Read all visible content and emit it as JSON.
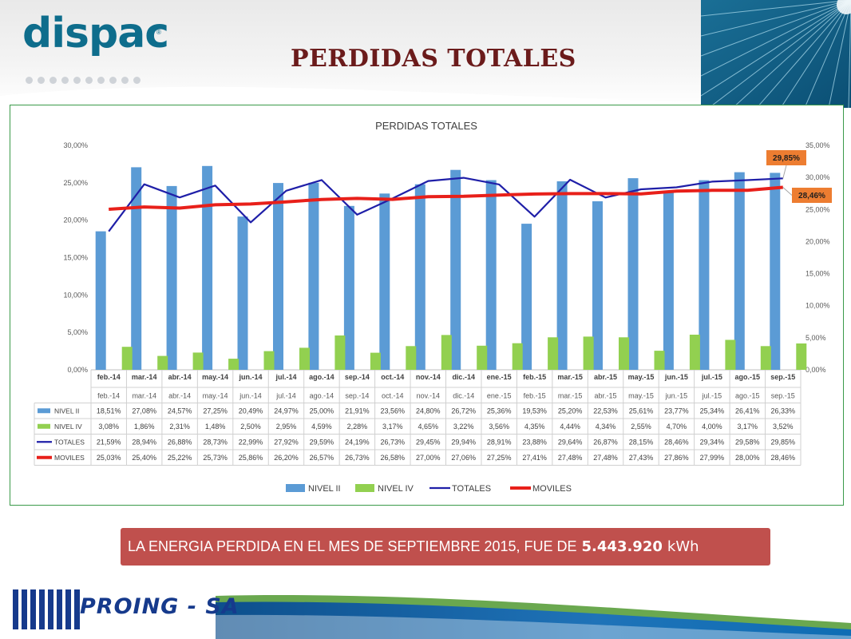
{
  "brand": {
    "logo_text": "dispac",
    "logo_mark": "®",
    "footer_logo": "PROING - SA"
  },
  "page": {
    "title": "PERDIDAS TOTALES"
  },
  "callout": {
    "text": "LA ENERGIA PERDIDA EN EL MES DE SEPTIEMBRE 2015, FUE DE",
    "value": "5.443.920",
    "unit": "kWh",
    "color": "#c0504d"
  },
  "chart_data": {
    "type": "bar",
    "title": "PERDIDAS TOTALES",
    "categories": [
      "feb.-14",
      "mar.-14",
      "abr.-14",
      "may.-14",
      "jun.-14",
      "jul.-14",
      "ago.-14",
      "sep.-14",
      "oct.-14",
      "nov.-14",
      "dic.-14",
      "ene.-15",
      "feb.-15",
      "mar.-15",
      "abr.-15",
      "may.-15",
      "jun.-15",
      "jul.-15",
      "ago.-15",
      "sep.-15"
    ],
    "y_left": {
      "min": 0,
      "max": 30,
      "step": 5,
      "ticks": [
        "0,00%",
        "5,00%",
        "10,00%",
        "15,00%",
        "20,00%",
        "25,00%",
        "30,00%"
      ]
    },
    "y_right": {
      "min": 0,
      "max": 35,
      "step": 5,
      "ticks": [
        "0,00%",
        "5,00%",
        "10,00%",
        "15,00%",
        "20,00%",
        "25,00%",
        "30,00%",
        "35,00%"
      ]
    },
    "series": [
      {
        "name": "NIVEL II",
        "type": "bar",
        "axis": "left",
        "color": "#5b9bd5",
        "values": [
          18.51,
          27.08,
          24.57,
          27.25,
          20.49,
          24.97,
          25.0,
          21.91,
          23.56,
          24.8,
          26.72,
          25.36,
          19.53,
          25.2,
          22.53,
          25.61,
          23.77,
          25.34,
          26.41,
          26.33
        ],
        "labels": [
          "18,51%",
          "27,08%",
          "24,57%",
          "27,25%",
          "20,49%",
          "24,97%",
          "25,00%",
          "21,91%",
          "23,56%",
          "24,80%",
          "26,72%",
          "25,36%",
          "19,53%",
          "25,20%",
          "22,53%",
          "25,61%",
          "23,77%",
          "25,34%",
          "26,41%",
          "26,33%"
        ]
      },
      {
        "name": "NIVEL IV",
        "type": "bar",
        "axis": "left",
        "color": "#92d050",
        "values": [
          3.08,
          1.86,
          2.31,
          1.48,
          2.5,
          2.95,
          4.59,
          2.28,
          3.17,
          4.65,
          3.22,
          3.56,
          4.35,
          4.44,
          4.34,
          2.55,
          4.7,
          4.0,
          3.17,
          3.52
        ],
        "labels": [
          "3,08%",
          "1,86%",
          "2,31%",
          "1,48%",
          "2,50%",
          "2,95%",
          "4,59%",
          "2,28%",
          "3,17%",
          "4,65%",
          "3,22%",
          "3,56%",
          "4,35%",
          "4,44%",
          "4,34%",
          "2,55%",
          "4,70%",
          "4,00%",
          "3,17%",
          "3,52%"
        ]
      },
      {
        "name": "TOTALES",
        "type": "line",
        "axis": "right",
        "color": "#1f1fa8",
        "values": [
          21.59,
          28.94,
          26.88,
          28.73,
          22.99,
          27.92,
          29.59,
          24.19,
          26.73,
          29.45,
          29.94,
          28.91,
          23.88,
          29.64,
          26.87,
          28.15,
          28.46,
          29.34,
          29.58,
          29.85
        ],
        "labels": [
          "21,59%",
          "28,94%",
          "26,88%",
          "28,73%",
          "22,99%",
          "27,92%",
          "29,59%",
          "24,19%",
          "26,73%",
          "29,45%",
          "29,94%",
          "28,91%",
          "23,88%",
          "29,64%",
          "26,87%",
          "28,15%",
          "28,46%",
          "29,34%",
          "29,58%",
          "29,85%"
        ]
      },
      {
        "name": "MOVILES",
        "type": "line",
        "axis": "right",
        "color": "#e8201a",
        "values": [
          25.03,
          25.4,
          25.22,
          25.73,
          25.86,
          26.2,
          26.57,
          26.73,
          26.58,
          27.0,
          27.06,
          27.25,
          27.41,
          27.48,
          27.48,
          27.43,
          27.86,
          27.99,
          28.0,
          28.46
        ],
        "labels": [
          "25,03%",
          "25,40%",
          "25,22%",
          "25,73%",
          "25,86%",
          "26,20%",
          "26,57%",
          "26,73%",
          "26,58%",
          "27,00%",
          "27,06%",
          "27,25%",
          "27,41%",
          "27,48%",
          "27,48%",
          "27,43%",
          "27,86%",
          "27,99%",
          "28,00%",
          "28,46%"
        ]
      }
    ],
    "annotations": [
      {
        "text": "29,85%",
        "series": "TOTALES",
        "index": 19,
        "color": "#ed7d31"
      },
      {
        "text": "28,46%",
        "series": "MOVILES",
        "index": 19,
        "color": "#ed7d31"
      }
    ],
    "legend": "bottom",
    "data_table": true,
    "grid": false
  }
}
